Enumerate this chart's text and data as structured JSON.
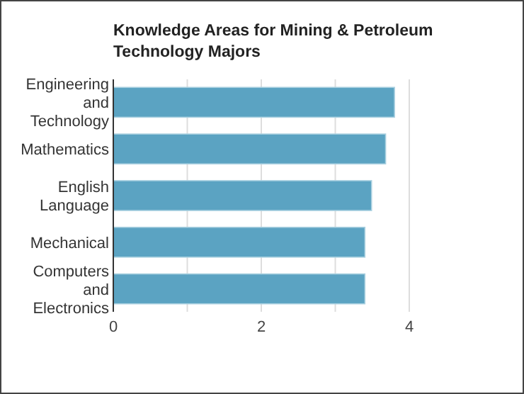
{
  "chart_data": {
    "type": "bar",
    "orientation": "horizontal",
    "title": "Knowledge Areas for Mining & Petroleum Technology Majors",
    "categories": [
      "Engineering and Technology",
      "Mathematics",
      "English Language",
      "Mechanical",
      "Computers and Electronics"
    ],
    "values": [
      3.8,
      3.68,
      3.49,
      3.4,
      3.4
    ],
    "color": "#5ba3c2",
    "xlim": [
      0,
      4
    ],
    "xticks": [
      0,
      {
        "value": 1,
        "label": null
      },
      2,
      {
        "value": 3,
        "label": null
      },
      4
    ],
    "grid": "x"
  }
}
